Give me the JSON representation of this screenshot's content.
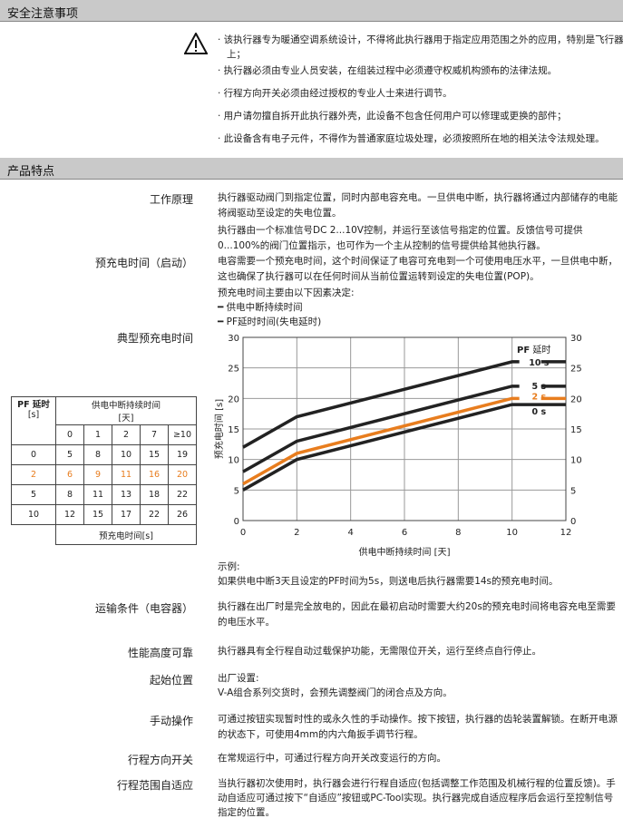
{
  "safety": {
    "title": "安全注意事项",
    "icon": "warning-triangle-icon",
    "bullets": [
      "· 该执行器专为暖通空调系统设计，不得将此执行器用于指定应用范围之外的应用，特别是飞行器上；",
      "· 执行器必须由专业人员安装，在组装过程中必须遵守权威机构颁布的法律法规。",
      "· 行程方向开关必须由经过授权的专业人士来进行调节。",
      "· 用户请勿擅自拆开此执行器外壳，此设备不包含任何用户可以修理或更换的部件；",
      "· 此设备含有电子元件，不得作为普通家庭垃圾处理，必须按照所在地的相关法令法规处理。"
    ]
  },
  "features": {
    "title": "产品特点",
    "working": {
      "label": "工作原理",
      "p1": "执行器驱动阀门到指定位置，同时内部电容充电。一旦供电中断，执行器将通过内部储存的电能将阀驱动至设定的失电位置。",
      "p2": "执行器由一个标准信号DC 2...10V控制，并运行至该信号指定的位置。反馈信号可提供0...100%的阀门位置指示，也可作为一个主从控制的信号提供给其他执行器。"
    },
    "precharge": {
      "label": "预充电时间（启动）",
      "p1": "电容需要一个预充电时间，这个时间保证了电容可充电到一个可使用电压水平，一旦供电中断，这也确保了执行器可以在任何时间从当前位置运转到设定的失电位置(POP)。",
      "p2": "预充电时间主要由以下因素决定:",
      "f1": "━ 供电中断持续时间",
      "f2": "━ PF延时时间(失电延时)"
    },
    "typical": {
      "label": "典型预充电时间"
    },
    "example": {
      "title": "示例:",
      "text": "如果供电中断3天且设定的PF时间为5s，则送电后执行器需要14s的预充电时间。"
    },
    "transport": {
      "label": "运输条件（电容器）",
      "text": "执行器在出厂时是完全放电的，因此在最初启动时需要大约20s的预充电时间将电容充电至需要的电压水平。"
    },
    "reliable": {
      "label": "性能高度可靠",
      "text": "执行器具有全行程自动过载保护功能，无需限位开关，运行至终点自行停止。"
    },
    "start": {
      "label": "起始位置",
      "l1": "出厂设置:",
      "l2": "V-A组合系列交货时，会预先调整阀门的闭合点及方向。"
    },
    "manual": {
      "label": "手动操作",
      "text": "可通过按钮实现暂时性的或永久性的手动操作。按下按钮，执行器的齿轮装置解锁。在断开电源的状态下，可使用4mm的内六角扳手调节行程。"
    },
    "dirswitch": {
      "label": "行程方向开关",
      "text": "在常规运行中，可通过行程方向开关改变运行的方向。"
    },
    "adapt": {
      "label": "行程范围自适应",
      "text": "当执行器初次使用时，执行器会进行行程自适应(包括调整工作范围及机械行程的位置反馈)。手动自适应可通过按下“自适应”按钮或PC-Tool实现。执行器完成自适应程序后会运行至控制信号指定的位置。"
    }
  },
  "table": {
    "pf_header": "PF 延时",
    "pf_unit": "[s]",
    "dur_header": "供电中断持续时间",
    "dur_unit": "[天]",
    "days": [
      "0",
      "1",
      "2",
      "7",
      "≥10"
    ],
    "rows": [
      {
        "pf": "0",
        "v": [
          "5",
          "8",
          "10",
          "15",
          "19"
        ]
      },
      {
        "pf": "2",
        "v": [
          "6",
          "9",
          "11",
          "16",
          "20"
        ]
      },
      {
        "pf": "5",
        "v": [
          "8",
          "11",
          "13",
          "18",
          "22"
        ]
      },
      {
        "pf": "10",
        "v": [
          "12",
          "15",
          "17",
          "22",
          "26"
        ]
      }
    ],
    "footer": "预充电时间[s]",
    "highlight_color": "#e87d1e"
  },
  "chart_data": {
    "type": "line",
    "xlabel": "供电中断持续时间 [天]",
    "ylabel": "预充电时间 [s]",
    "xlim": [
      0,
      12
    ],
    "ylim": [
      0,
      30
    ],
    "xticks": [
      0,
      2,
      4,
      6,
      8,
      10,
      12
    ],
    "yticks": [
      0,
      5,
      10,
      15,
      20,
      25,
      30
    ],
    "grid": true,
    "legend_title_bold": "PF",
    "legend_title": "延时",
    "legend": "right",
    "series": [
      {
        "name": "10 s",
        "color": "#222222",
        "x": [
          0,
          2,
          10,
          12
        ],
        "y": [
          12,
          17,
          26,
          26
        ]
      },
      {
        "name": "5 s",
        "color": "#222222",
        "x": [
          0,
          2,
          10,
          12
        ],
        "y": [
          8,
          13,
          22,
          22
        ]
      },
      {
        "name": "2 s",
        "color": "#e87d1e",
        "x": [
          0,
          2,
          10,
          12
        ],
        "y": [
          6,
          11,
          20,
          20
        ]
      },
      {
        "name": "0 s",
        "color": "#222222",
        "x": [
          0,
          2,
          10,
          12
        ],
        "y": [
          5,
          10,
          19,
          19
        ]
      }
    ]
  }
}
